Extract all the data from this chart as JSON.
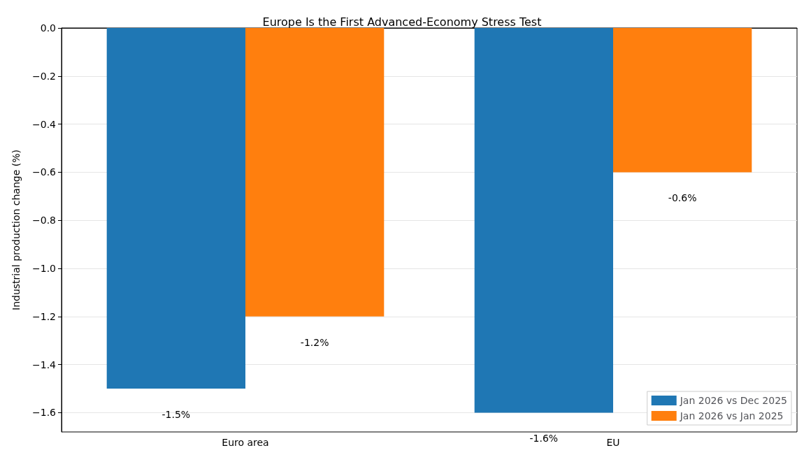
{
  "chart_data": {
    "type": "bar",
    "title": "Europe Is the First Advanced-Economy Stress Test",
    "ylabel": "Industrial production change (%)",
    "categories": [
      "Euro area",
      "EU"
    ],
    "series": [
      {
        "name": "Jan 2026 vs Dec 2025",
        "color": "#1f77b4",
        "values": [
          -1.5,
          -1.6
        ],
        "value_labels": [
          "-1.5%",
          "-1.6%"
        ]
      },
      {
        "name": "Jan 2026 vs Jan 2025",
        "color": "#ff7f0e",
        "values": [
          -1.2,
          -0.6
        ],
        "value_labels": [
          "-1.2%",
          "-0.6%"
        ]
      }
    ],
    "ylim": [
      -1.68,
      0
    ],
    "yticks": [
      {
        "value": 0,
        "label": "0.0"
      },
      {
        "value": -0.2,
        "label": "−0.2"
      },
      {
        "value": -0.4,
        "label": "−0.4"
      },
      {
        "value": -0.6,
        "label": "−0.6"
      },
      {
        "value": -0.8,
        "label": "−0.8"
      },
      {
        "value": -1.0,
        "label": "−1.0"
      },
      {
        "value": -1.2,
        "label": "−1.2"
      },
      {
        "value": -1.4,
        "label": "−1.4"
      },
      {
        "value": -1.6,
        "label": "−1.6"
      }
    ],
    "grid": "y",
    "legend": "bottom right"
  }
}
